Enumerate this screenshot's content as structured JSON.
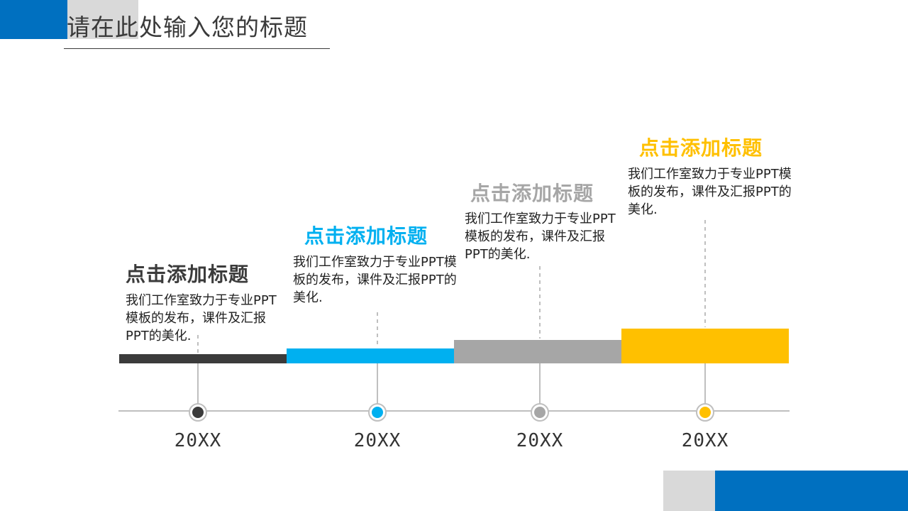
{
  "header": {
    "title": "请在此处输入您的标题"
  },
  "timeline": {
    "stages": [
      {
        "title": "点击添加标题",
        "description": "我们工作室致力于专业PPT模板的发布，课件及汇报PPT的美化.",
        "year": "20XX",
        "color": "#3b3b3b"
      },
      {
        "title": "点击添加标题",
        "description": "我们工作室致力于专业PPT模板的发布，课件及汇报PPT的美化.",
        "year": "20XX",
        "color": "#00b0f0"
      },
      {
        "title": "点击添加标题",
        "description": "我们工作室致力于专业PPT模板的发布，课件及汇报PPT的美化.",
        "year": "20XX",
        "color": "#a6a6a6"
      },
      {
        "title": "点击添加标题",
        "description": "我们工作室致力于专业PPT模板的发布，课件及汇报PPT的美化.",
        "year": "20XX",
        "color": "#ffc000"
      }
    ]
  },
  "colors": {
    "accent_blue": "#0070c0",
    "deco_gray": "#d9d9d9",
    "axis_gray": "#bfbfbf"
  }
}
